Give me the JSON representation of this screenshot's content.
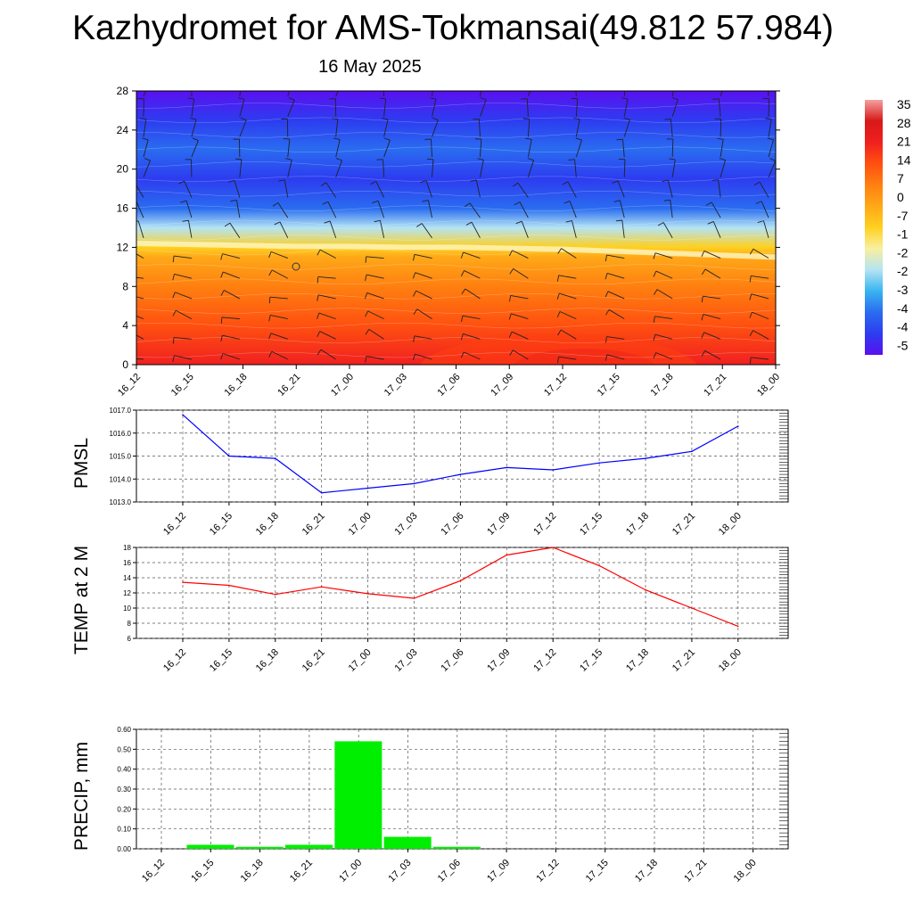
{
  "header": {
    "title": "Kazhydromet for AMS-Tokmansai(49.812 57.984)",
    "date": "16 May 2025"
  },
  "chart_data": [
    {
      "type": "heatmap",
      "name": "vertical-cross-section",
      "x_ticks": [
        "16_12",
        "16_15",
        "16_18",
        "16_21",
        "17_00",
        "17_03",
        "17_06",
        "17_09",
        "17_12",
        "17_15",
        "17_18",
        "17_21",
        "18_00"
      ],
      "y_ticks": [
        "0",
        "4",
        "8",
        "12",
        "16",
        "20",
        "24",
        "28"
      ],
      "ylim": [
        0,
        28
      ],
      "colorbar_labels": [
        "35",
        "28",
        "21",
        "14",
        "7",
        "0",
        "-7",
        "-1",
        "-2",
        "-2",
        "-3",
        "-4",
        "-4",
        "-5"
      ],
      "colorscale": [
        "#5a10f0",
        "#2d3cf0",
        "#2a6cf0",
        "#38b4f0",
        "#b4e4f4",
        "#f8f0a0",
        "#ffd020",
        "#ffa818",
        "#ff8010",
        "#ff5010",
        "#f02020",
        "#d81818",
        "#f4a0a0"
      ],
      "temperature_profile": [
        {
          "z": 0,
          "t": 18
        },
        {
          "z": 4,
          "t": 14
        },
        {
          "z": 8,
          "t": 8
        },
        {
          "z": 11,
          "t": 0
        },
        {
          "z": 12,
          "t": -8
        },
        {
          "z": 14,
          "t": -25
        },
        {
          "z": 16,
          "t": -38
        },
        {
          "z": 19,
          "t": -46
        },
        {
          "z": 22,
          "t": -44
        },
        {
          "z": 25,
          "t": -50
        },
        {
          "z": 28,
          "t": -56
        }
      ],
      "freezing_level": [
        12.4,
        12.3,
        12.2,
        12.1,
        12.1,
        12.0,
        12.0,
        11.9,
        11.8,
        11.6,
        11.4,
        11.2,
        11.0
      ]
    },
    {
      "type": "line",
      "name": "PMSL",
      "ylabel": "PMSL",
      "x": [
        "16_12",
        "16_15",
        "16_18",
        "16_21",
        "17_00",
        "17_03",
        "17_06",
        "17_09",
        "17_12",
        "17_15",
        "17_18",
        "17_21",
        "18_00"
      ],
      "values": [
        1016.8,
        1015.0,
        1014.9,
        1013.4,
        1013.6,
        1013.8,
        1014.2,
        1014.5,
        1014.4,
        1014.7,
        1014.9,
        1015.2,
        1016.3
      ],
      "ylim": [
        1013.0,
        1017.0
      ],
      "y_ticks": [
        "1013.0",
        "1014.0",
        "1015.0",
        "1016.0",
        "1017.0"
      ],
      "color": "#0000ff"
    },
    {
      "type": "line",
      "name": "TEMP at 2 M",
      "ylabel": "TEMP at 2 M",
      "x": [
        "16_12",
        "16_15",
        "16_18",
        "16_21",
        "17_00",
        "17_03",
        "17_06",
        "17_09",
        "17_12",
        "17_15",
        "17_18",
        "17_21",
        "18_00"
      ],
      "values": [
        13.4,
        13.0,
        11.8,
        12.8,
        11.9,
        11.3,
        13.6,
        17.0,
        18.0,
        15.6,
        12.4,
        10.0,
        7.6
      ],
      "ylim": [
        6,
        18
      ],
      "y_ticks": [
        "6",
        "8",
        "10",
        "12",
        "14",
        "16",
        "18"
      ],
      "color": "#ff0000"
    },
    {
      "type": "bar",
      "name": "PRECIP, mm",
      "ylabel": "PRECIP, mm",
      "x": [
        "16_12",
        "16_15",
        "16_18",
        "16_21",
        "17_00",
        "17_03",
        "17_06",
        "17_09",
        "17_12",
        "17_15",
        "17_18",
        "17_21",
        "18_00"
      ],
      "values": [
        0.0,
        0.02,
        0.01,
        0.02,
        0.54,
        0.06,
        0.01,
        0.0,
        0.0,
        0.0,
        0.0,
        0.0,
        0.0
      ],
      "ylim": [
        0,
        0.6
      ],
      "y_ticks": [
        "0.00",
        "0.10",
        "0.20",
        "0.30",
        "0.40",
        "0.50",
        "0.60"
      ],
      "color": "#00ee00"
    }
  ]
}
